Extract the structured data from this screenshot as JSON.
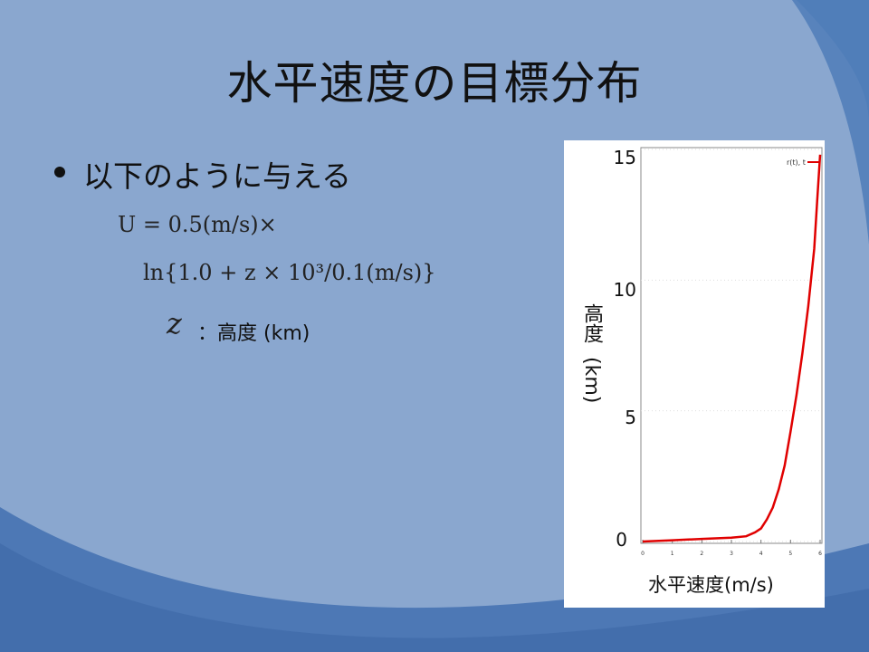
{
  "title": "水平速度の目標分布",
  "bullet": "以下のように与える",
  "equation": {
    "line1": "U = 0.5(m/s)×",
    "line2": "ln{1.0 + z × 10³/0.1(m/s)}"
  },
  "variable": {
    "symbol": "z",
    "description": "：高度 (km)"
  },
  "colors": {
    "background": "#8aa7cf",
    "curve": "#e00000"
  },
  "chart_data": {
    "type": "line",
    "xlabel": "水平速度(m/s)",
    "ylabel": "高度 (km)",
    "ylabel_main": "高度",
    "ylabel_unit": "(km)",
    "xlim": [
      0,
      6
    ],
    "ylim": [
      0,
      15
    ],
    "x_ticks": [
      "0",
      "1",
      "2",
      "3",
      "4",
      "5",
      "6"
    ],
    "y_ticks": [
      "0",
      "5",
      "10",
      "15"
    ],
    "legend_position": "top-right",
    "series": [
      {
        "name": "r(t), t",
        "x": [
          0.0,
          1.0,
          2.0,
          3.0,
          3.5,
          3.8,
          4.0,
          4.2,
          4.4,
          4.6,
          4.8,
          5.0,
          5.2,
          5.4,
          5.6,
          5.8,
          5.9,
          6.0
        ],
        "y": [
          0.0,
          0.05,
          0.1,
          0.15,
          0.2,
          0.35,
          0.5,
          0.85,
          1.3,
          2.0,
          2.9,
          4.2,
          5.6,
          7.2,
          9.0,
          11.2,
          13.0,
          14.8
        ]
      }
    ]
  }
}
